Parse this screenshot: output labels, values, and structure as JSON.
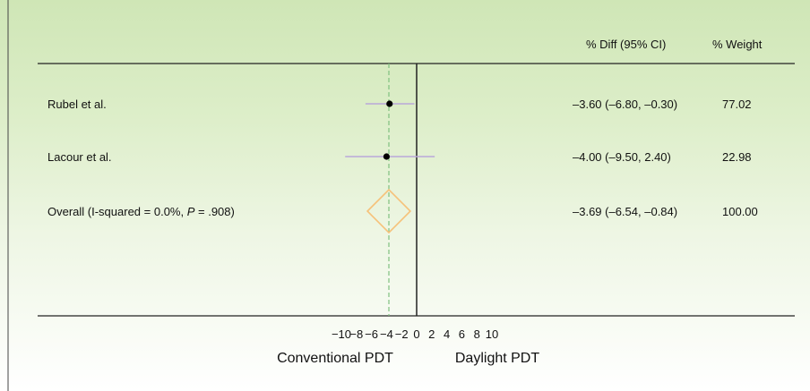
{
  "chart_data": {
    "type": "forest",
    "columns": {
      "diff_header": "% Diff (95% CI)",
      "weight_header": "% Weight"
    },
    "studies": [
      {
        "label": "Rubel et al.",
        "estimate": -3.6,
        "ci": [
          -6.8,
          -0.3
        ],
        "ci_text": "–3.60 (–6.80, –0.30)",
        "weight_text": "77.02"
      },
      {
        "label": "Lacour et al.",
        "estimate": -4.0,
        "ci": [
          -9.5,
          2.4
        ],
        "ci_text": "–4.00 (–9.50, 2.40)",
        "weight_text": "22.98"
      }
    ],
    "overall": {
      "label_prefix": "Overall (I-squared = 0.0%, ",
      "label_p": "P",
      "label_suffix": " = .908)",
      "estimate": -3.69,
      "ci": [
        -6.54,
        -0.84
      ],
      "ci_text": "–3.69 (–6.54, –0.84)",
      "weight_text": "100.00"
    },
    "xaxis": {
      "ticks": [
        -10,
        -8,
        -6,
        -4,
        -2,
        0,
        2,
        4,
        6,
        8,
        10
      ],
      "tick_labels": [
        "−10",
        "−8",
        "−6",
        "−4",
        "−2",
        "0",
        "2",
        "4",
        "6",
        "8",
        "10"
      ],
      "xlim": [
        -10,
        10
      ],
      "left_label": "Conventional PDT",
      "right_label": "Daylight PDT"
    },
    "colors": {
      "ci_line": "#b9a8d9",
      "diamond": "#f6c27a",
      "reference_line": "#7fc07f",
      "point": "#000000"
    }
  }
}
